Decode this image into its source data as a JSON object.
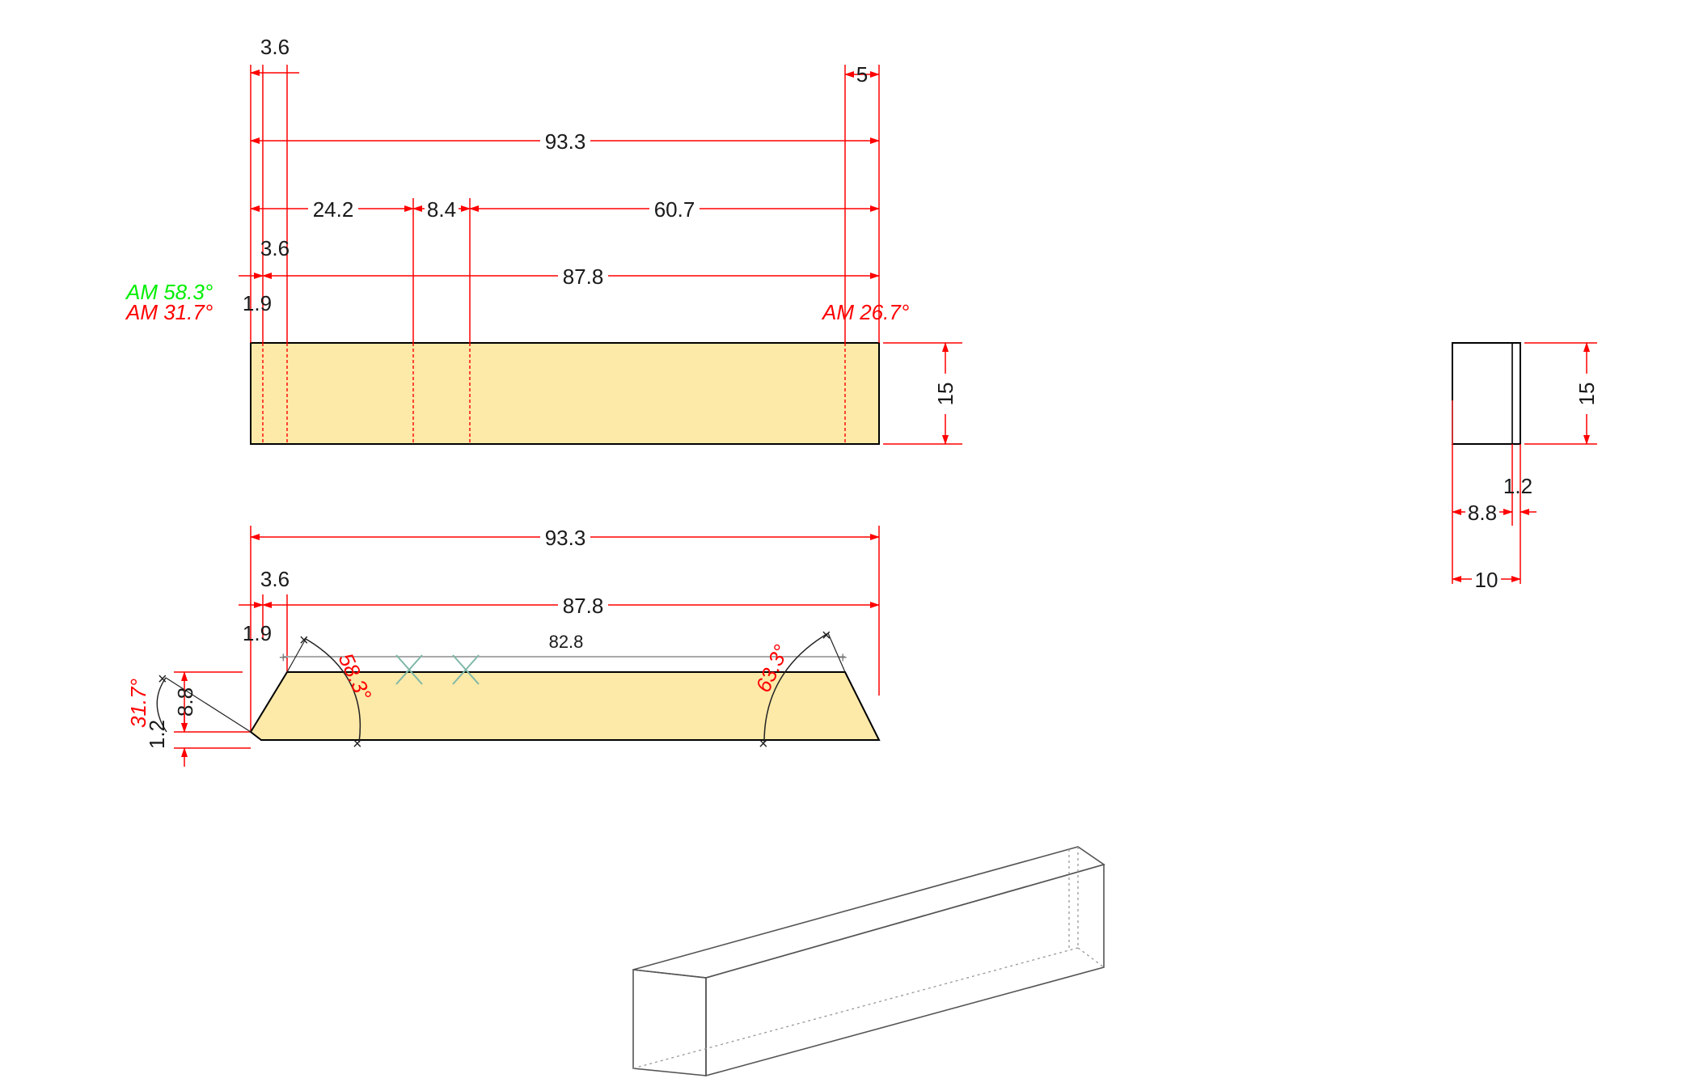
{
  "top_view": {
    "dims": {
      "offset_left": "3.6",
      "offset_right": "5",
      "overall": "93.3",
      "seg_a": "24.2",
      "seg_b": "8.4",
      "seg_c": "60.7",
      "inner_offset": "3.6",
      "inner_length": "87.8",
      "edge": "1.9",
      "height": "15"
    },
    "angles": {
      "left_green": "AM 58.3°",
      "left_red": "AM 31.7°",
      "right_red": "AM 26.7°"
    }
  },
  "side_view": {
    "dims": {
      "overall": "93.3",
      "inner_offset": "3.6",
      "inner_length": "87.8",
      "edge": "1.9",
      "top_length": "82.8",
      "rise": "8.8",
      "base": "1.2"
    },
    "angles": {
      "left_small": "31.7°",
      "left_bevel": "58.3°",
      "right_bevel": "63.3°"
    }
  },
  "end_view": {
    "dims": {
      "height": "15",
      "lip": "1.2",
      "inner": "8.8",
      "width": "10"
    }
  },
  "colors": {
    "part_fill": "#fde9a8",
    "dimension": "#ff0000",
    "outline": "#000000",
    "angle_alt": "#00ee00"
  }
}
